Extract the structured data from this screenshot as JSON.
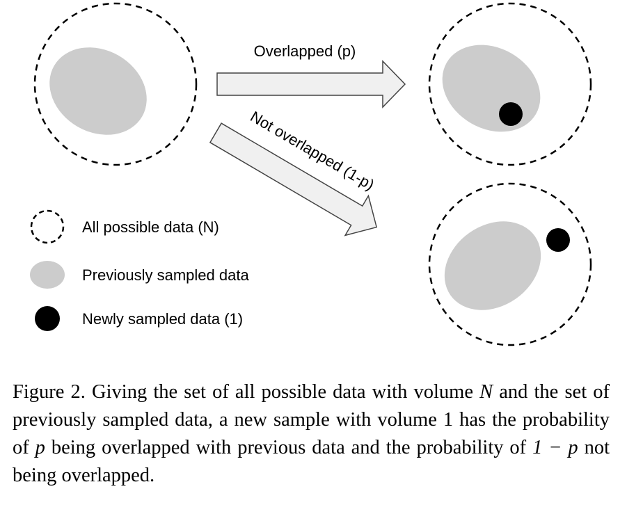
{
  "diagram": {
    "arrows": [
      {
        "label": "Overlapped (p)"
      },
      {
        "label": "Not overlapped (1-p)"
      }
    ],
    "legend": [
      {
        "label": "All possible data (N)"
      },
      {
        "label": "Previously sampled data"
      },
      {
        "label": "Newly sampled data (1)"
      }
    ]
  },
  "caption": {
    "parts": [
      "Figure 2. Giving the set of all possible data with volume ",
      "N",
      " and the set of previously sampled data, a new sample with volume 1 has the probability of ",
      "p",
      " being overlapped with previous data and the probability of ",
      "1 − p",
      " not being overlapped."
    ]
  }
}
